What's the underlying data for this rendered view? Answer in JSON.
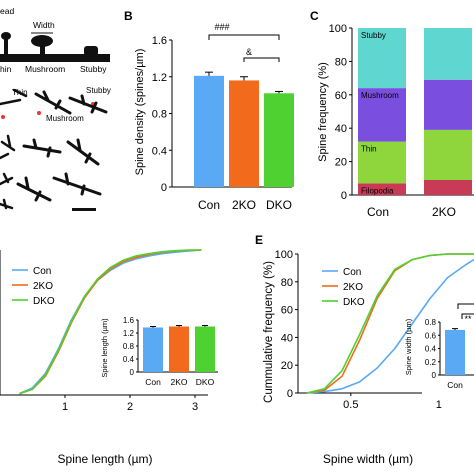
{
  "colors": {
    "con": "#59a9f5",
    "ko2": "#f26a1b",
    "dko": "#4fd131",
    "stubby": "#5fd6d0",
    "mushroom": "#7a4fe0",
    "thin": "#8fd63c",
    "filopodia": "#c93a57",
    "axis": "#000000"
  },
  "panel_a": {
    "schematic_labels": [
      "ead",
      "Width",
      "hin",
      "Mushroom",
      "Stubby"
    ],
    "image_labels": [
      "Thin",
      "Stubby",
      "Mushroom"
    ]
  },
  "chart_data": [
    {
      "panel": "B",
      "type": "bar",
      "ylabel": "Spine density (spines/µm)",
      "ylim": [
        0,
        1.6
      ],
      "yticks": [
        "0",
        "0.4",
        "0.8",
        "1.2",
        "1.6"
      ],
      "categories": [
        "Con",
        "2KO",
        "DKO"
      ],
      "values": [
        1.21,
        1.16,
        1.02
      ],
      "errors": [
        0.04,
        0.04,
        0.02
      ],
      "annotations": [
        "###",
        "&"
      ]
    },
    {
      "panel": "C",
      "type": "bar",
      "stacked": true,
      "ylabel": "Spine frequency (%)",
      "ylim": [
        0,
        100
      ],
      "yticks": [
        "0",
        "20",
        "40",
        "60",
        "80",
        "100"
      ],
      "categories": [
        "Con",
        "2KO"
      ],
      "series": [
        {
          "name": "Filopodia",
          "values": [
            7,
            9
          ]
        },
        {
          "name": "Thin",
          "values": [
            25,
            30
          ]
        },
        {
          "name": "Mushroom",
          "values": [
            32,
            30
          ]
        },
        {
          "name": "Stubby",
          "values": [
            36,
            31
          ]
        }
      ]
    },
    {
      "panel": "D",
      "type": "line",
      "xlabel": "Spine length (µm)",
      "xlim": [
        0,
        3.2
      ],
      "xticks": [
        "1",
        "2",
        "3"
      ],
      "series": [
        {
          "name": "Con",
          "x": [
            0.3,
            0.5,
            0.7,
            0.9,
            1.1,
            1.3,
            1.5,
            1.7,
            1.9,
            2.1,
            2.3,
            2.5,
            2.7,
            2.9,
            3.1
          ],
          "y": [
            1,
            5,
            15,
            32,
            52,
            68,
            79,
            86,
            91,
            94,
            96,
            97.5,
            98.5,
            99.3,
            100
          ]
        },
        {
          "name": "2KO",
          "x": [
            0.3,
            0.5,
            0.7,
            0.9,
            1.1,
            1.3,
            1.5,
            1.7,
            1.9,
            2.1,
            2.3,
            2.5,
            2.7,
            2.9,
            3.1
          ],
          "y": [
            1,
            4,
            13,
            30,
            50,
            67,
            79,
            87,
            92,
            95,
            97,
            98.5,
            99.3,
            99.8,
            100
          ]
        },
        {
          "name": "DKO",
          "x": [
            0.3,
            0.5,
            0.7,
            0.9,
            1.1,
            1.3,
            1.5,
            1.7,
            1.9,
            2.1,
            2.3,
            2.5,
            2.7,
            2.9,
            3.1
          ],
          "y": [
            1,
            4,
            14,
            31,
            51,
            68,
            80,
            88,
            93,
            96,
            97.5,
            98.8,
            99.5,
            99.9,
            100
          ]
        }
      ],
      "inset": {
        "type": "bar",
        "ylabel": "Spine length (µm)",
        "ylim": [
          0,
          1.6
        ],
        "yticks": [
          "0",
          "0.4",
          "0.8",
          "1.2",
          "1.6"
        ],
        "categories": [
          "Con",
          "2KO",
          "DKO"
        ],
        "values": [
          1.37,
          1.4,
          1.4
        ],
        "errors": [
          0.03,
          0.03,
          0.03
        ]
      }
    },
    {
      "panel": "E",
      "type": "line",
      "xlabel": "Spine width (µm)",
      "ylabel": "Cummulative frequency (%)",
      "ylim": [
        0,
        100
      ],
      "yticks": [
        "0",
        "20",
        "40",
        "60",
        "80",
        "100"
      ],
      "xlim": [
        0.2,
        1.2
      ],
      "xticks": [
        "0.5",
        "1"
      ],
      "series": [
        {
          "name": "Con",
          "x": [
            0.25,
            0.35,
            0.45,
            0.55,
            0.65,
            0.75,
            0.85,
            0.95,
            1.05,
            1.15,
            1.2
          ],
          "y": [
            0,
            1,
            3,
            8,
            18,
            32,
            50,
            68,
            83,
            92,
            96
          ]
        },
        {
          "name": "2KO",
          "x": [
            0.25,
            0.35,
            0.45,
            0.55,
            0.65,
            0.75,
            0.85,
            0.95,
            1.05,
            1.15,
            1.2
          ],
          "y": [
            0,
            2,
            12,
            38,
            68,
            88,
            96,
            99,
            100,
            100,
            100
          ]
        },
        {
          "name": "DKO",
          "x": [
            0.25,
            0.35,
            0.45,
            0.55,
            0.65,
            0.75,
            0.85,
            0.95,
            1.05,
            1.15,
            1.2
          ],
          "y": [
            0,
            3,
            16,
            42,
            70,
            89,
            96,
            99,
            100,
            100,
            100
          ]
        }
      ],
      "inset": {
        "type": "bar",
        "ylabel": "Spine width (µm)",
        "ylim": [
          0,
          0.8
        ],
        "yticks": [
          "0",
          "0.2",
          "0.4",
          "0.6",
          "0.8"
        ],
        "categories": [
          "Con"
        ],
        "values": [
          0.68
        ],
        "errors": [
          0.02
        ],
        "annotations": [
          "**"
        ]
      }
    }
  ],
  "panel_labels": {
    "b": "B",
    "c": "C",
    "e": "E"
  },
  "legend": [
    "Con",
    "2KO",
    "DKO"
  ]
}
